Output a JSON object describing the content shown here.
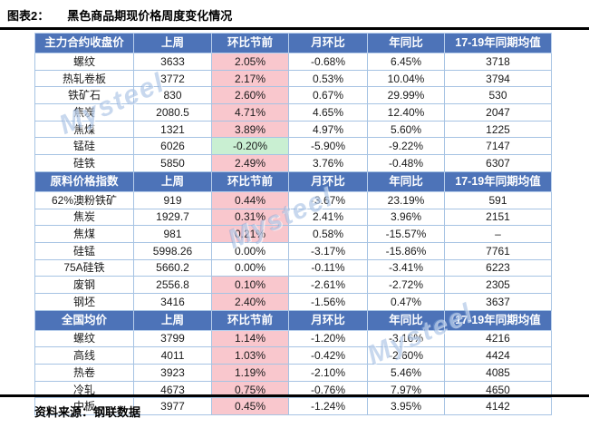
{
  "title": {
    "prefix": "图表2：",
    "text": "黑色商品期现价格周度变化情况"
  },
  "watermark": {
    "text": "Mysteel"
  },
  "source": {
    "text": "资料来源：钢联数据"
  },
  "colors": {
    "header_bg": "#4d73b8",
    "grid": "#a6c3e3",
    "pink_bg": "#f9c7cd",
    "pink_text": "#d92b2b",
    "green_bg": "#c9efd2",
    "green_text": "#1e7d32",
    "watermark": "#7da2d7",
    "rule": "#000000"
  },
  "chart_data": {
    "type": "table",
    "title": "黑色商品期现价格周度变化情况",
    "columns": [
      "上周",
      "环比节前",
      "月环比",
      "年同比",
      "17-19年同期均值"
    ],
    "sections": [
      {
        "header": "主力合约收盘价",
        "rows": [
          {
            "label": "螺纹",
            "cells": [
              {
                "v": "3633"
              },
              {
                "v": "2.05%",
                "hl": "pink"
              },
              {
                "v": "-0.68%"
              },
              {
                "v": "6.45%"
              },
              {
                "v": "3718"
              }
            ]
          },
          {
            "label": "热轧卷板",
            "cells": [
              {
                "v": "3772"
              },
              {
                "v": "2.17%",
                "hl": "pink"
              },
              {
                "v": "0.53%"
              },
              {
                "v": "10.04%"
              },
              {
                "v": "3794"
              }
            ]
          },
          {
            "label": "铁矿石",
            "cells": [
              {
                "v": "830"
              },
              {
                "v": "2.60%",
                "hl": "pink"
              },
              {
                "v": "0.67%"
              },
              {
                "v": "29.99%"
              },
              {
                "v": "530"
              }
            ]
          },
          {
            "label": "焦炭",
            "cells": [
              {
                "v": "2080.5"
              },
              {
                "v": "4.71%",
                "hl": "pink"
              },
              {
                "v": "4.65%"
              },
              {
                "v": "12.40%"
              },
              {
                "v": "2047"
              }
            ]
          },
          {
            "label": "焦煤",
            "cells": [
              {
                "v": "1321"
              },
              {
                "v": "3.89%",
                "hl": "pink"
              },
              {
                "v": "4.97%"
              },
              {
                "v": "5.60%"
              },
              {
                "v": "1225"
              }
            ]
          },
          {
            "label": "锰硅",
            "cells": [
              {
                "v": "6026"
              },
              {
                "v": "-0.20%",
                "hl": "green"
              },
              {
                "v": "-5.90%"
              },
              {
                "v": "-9.22%"
              },
              {
                "v": "7147"
              }
            ]
          },
          {
            "label": "硅铁",
            "cells": [
              {
                "v": "5850"
              },
              {
                "v": "2.49%",
                "hl": "pink"
              },
              {
                "v": "3.76%"
              },
              {
                "v": "-0.48%"
              },
              {
                "v": "6307"
              }
            ]
          }
        ]
      },
      {
        "header": "原料价格指数",
        "rows": [
          {
            "label": "62%澳粉铁矿",
            "cells": [
              {
                "v": "919"
              },
              {
                "v": "0.44%",
                "hl": "pink"
              },
              {
                "v": "-3.67%"
              },
              {
                "v": "23.19%"
              },
              {
                "v": "591"
              }
            ]
          },
          {
            "label": "焦炭",
            "cells": [
              {
                "v": "1929.7"
              },
              {
                "v": "0.31%",
                "hl": "pink"
              },
              {
                "v": "2.41%"
              },
              {
                "v": "3.96%"
              },
              {
                "v": "2151"
              }
            ]
          },
          {
            "label": "焦煤",
            "cells": [
              {
                "v": "981"
              },
              {
                "v": "0.21%",
                "hl": "pink"
              },
              {
                "v": "0.58%"
              },
              {
                "v": "-15.57%"
              },
              {
                "v": "–"
              }
            ]
          },
          {
            "label": "硅锰",
            "cells": [
              {
                "v": "5998.26"
              },
              {
                "v": "0.00%"
              },
              {
                "v": "-3.17%"
              },
              {
                "v": "-15.86%"
              },
              {
                "v": "7761"
              }
            ]
          },
          {
            "label": "75A硅铁",
            "cells": [
              {
                "v": "5660.2"
              },
              {
                "v": "0.00%"
              },
              {
                "v": "-0.11%"
              },
              {
                "v": "-3.41%"
              },
              {
                "v": "6223"
              }
            ]
          },
          {
            "label": "废钢",
            "cells": [
              {
                "v": "2556.8"
              },
              {
                "v": "0.10%",
                "hl": "pink"
              },
              {
                "v": "-2.61%"
              },
              {
                "v": "-2.72%"
              },
              {
                "v": "2305"
              }
            ]
          },
          {
            "label": "钢坯",
            "cells": [
              {
                "v": "3416"
              },
              {
                "v": "2.40%",
                "hl": "pink"
              },
              {
                "v": "-1.56%"
              },
              {
                "v": "0.47%"
              },
              {
                "v": "3637"
              }
            ]
          }
        ]
      },
      {
        "header": "全国均价",
        "rows": [
          {
            "label": "螺纹",
            "cells": [
              {
                "v": "3799"
              },
              {
                "v": "1.14%",
                "hl": "pink"
              },
              {
                "v": "-1.20%"
              },
              {
                "v": "-3.16%"
              },
              {
                "v": "4216"
              }
            ]
          },
          {
            "label": "高线",
            "cells": [
              {
                "v": "4011"
              },
              {
                "v": "1.03%",
                "hl": "pink"
              },
              {
                "v": "-0.42%"
              },
              {
                "v": "-2.60%"
              },
              {
                "v": "4424"
              }
            ]
          },
          {
            "label": "热卷",
            "cells": [
              {
                "v": "3923"
              },
              {
                "v": "1.19%",
                "hl": "pink"
              },
              {
                "v": "-2.10%"
              },
              {
                "v": "5.46%"
              },
              {
                "v": "4085"
              }
            ]
          },
          {
            "label": "冷轧",
            "cells": [
              {
                "v": "4673"
              },
              {
                "v": "0.75%",
                "hl": "pink"
              },
              {
                "v": "-0.76%"
              },
              {
                "v": "7.97%"
              },
              {
                "v": "4650"
              }
            ]
          },
          {
            "label": "中板",
            "cells": [
              {
                "v": "3977"
              },
              {
                "v": "0.45%",
                "hl": "pink"
              },
              {
                "v": "-1.24%"
              },
              {
                "v": "3.95%"
              },
              {
                "v": "4142"
              }
            ]
          }
        ]
      }
    ]
  }
}
